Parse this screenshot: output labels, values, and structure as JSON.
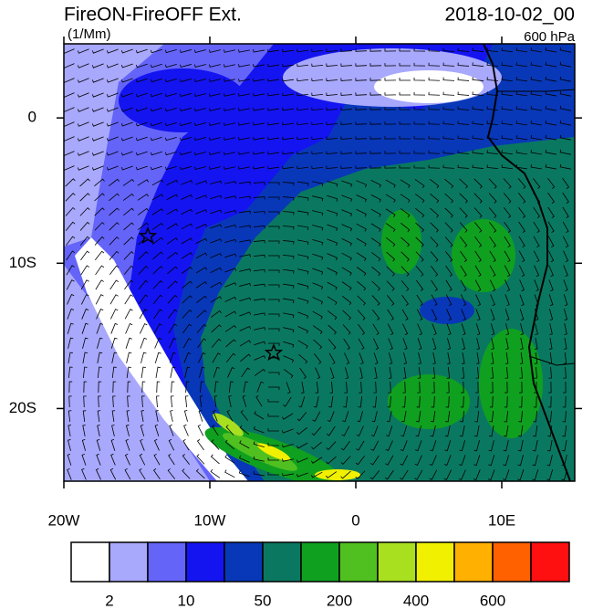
{
  "header": {
    "title": "FireON-FireOFF Ext.",
    "units": "(1/Mm)",
    "date": "2018-10-02_00",
    "level": "600 hPa"
  },
  "map": {
    "xlim": [
      -20,
      15
    ],
    "ylim": [
      -25,
      5.1
    ],
    "xticks": [
      {
        "value": -20,
        "label": "20W"
      },
      {
        "value": -10,
        "label": "10W"
      },
      0,
      {
        "value": 10,
        "label": "10E"
      }
    ],
    "yticks": [
      0,
      {
        "value": -10,
        "label": "10S"
      },
      {
        "value": -20,
        "label": "20S"
      }
    ]
  },
  "colorbar": {
    "colors": [
      "#ffffff",
      "#a8a8fc",
      "#6464f8",
      "#1414f0",
      "#0838b8",
      "#0a7860",
      "#10a020",
      "#50c020",
      "#a8e020",
      "#f0f000",
      "#ffb000",
      "#ff6000",
      "#ff1010"
    ],
    "ticks": [
      2,
      10,
      50,
      200,
      400,
      600
    ]
  }
}
